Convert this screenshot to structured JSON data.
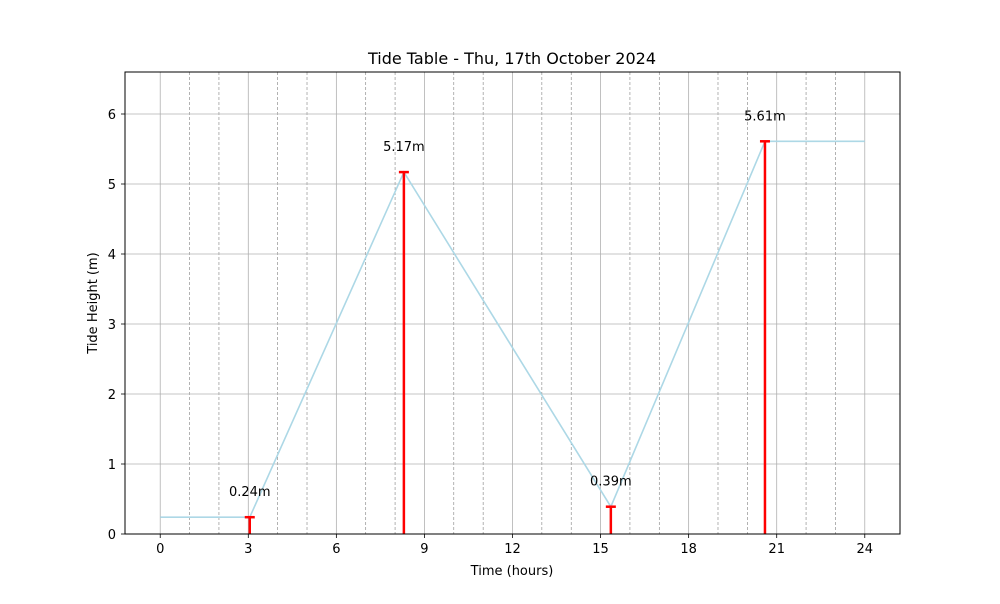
{
  "chart_data": {
    "type": "line",
    "title": "Tide Table - Thu, 17th October 2024",
    "xlabel": "Time (hours)",
    "ylabel": "Tide Height (m)",
    "xlim": [
      -1.2,
      25.2
    ],
    "ylim": [
      0,
      6.6
    ],
    "xticks": [
      0,
      3,
      6,
      9,
      12,
      15,
      18,
      21,
      24
    ],
    "yticks": [
      0,
      1,
      2,
      3,
      4,
      5,
      6
    ],
    "grid": true,
    "line_color": "#add8e6",
    "marker_color": "#ff0000",
    "series": [
      {
        "x": [
          0,
          3.05,
          8.3,
          15.35,
          20.6,
          24
        ],
        "y": [
          0.24,
          0.24,
          5.17,
          0.39,
          5.61,
          5.61
        ]
      }
    ],
    "extremes": [
      {
        "x": 3.05,
        "y": 0.24,
        "label": "0.24m"
      },
      {
        "x": 8.3,
        "y": 5.17,
        "label": "5.17m"
      },
      {
        "x": 15.35,
        "y": 0.39,
        "label": "0.39m"
      },
      {
        "x": 20.6,
        "y": 5.61,
        "label": "5.61m"
      }
    ]
  }
}
